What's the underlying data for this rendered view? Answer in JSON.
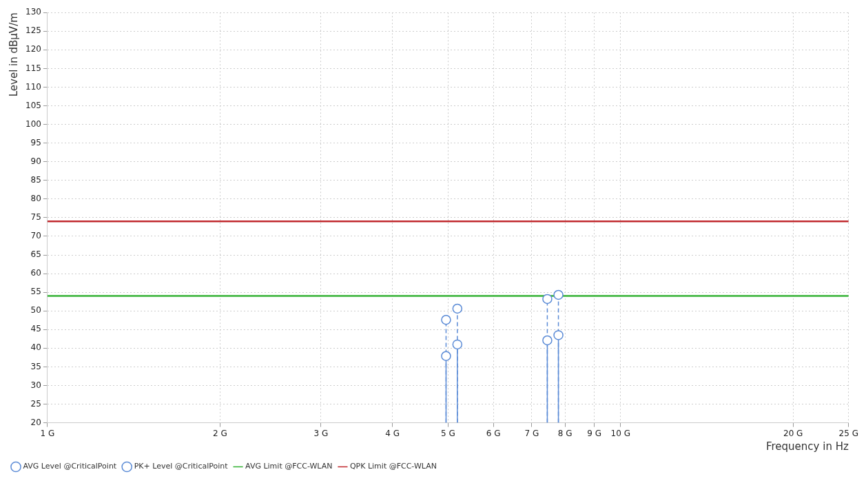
{
  "chart_data": {
    "type": "lollipop",
    "xlabel": "Frequency in Hz",
    "ylabel": "Level in dBµV/m",
    "log": "x",
    "grid": true,
    "legend": "bottom left",
    "marker": "circle",
    "xlim": [
      1,
      25
    ],
    "ylim": [
      20,
      130
    ],
    "xticks": [
      {
        "value": 1,
        "label": "1 G"
      },
      {
        "value": 2,
        "label": "2 G"
      },
      {
        "value": 3,
        "label": "3 G"
      },
      {
        "value": 4,
        "label": "4 G"
      },
      {
        "value": 5,
        "label": "5 G"
      },
      {
        "value": 6,
        "label": "6 G"
      },
      {
        "value": 7,
        "label": "7 G"
      },
      {
        "value": 8,
        "label": "8 G"
      },
      {
        "value": 9,
        "label": "9 G"
      },
      {
        "value": 10,
        "label": "10 G"
      },
      {
        "value": 20,
        "label": "20 G"
      },
      {
        "value": 25,
        "label": "25 G"
      }
    ],
    "yticks": [
      20,
      25,
      30,
      35,
      40,
      45,
      50,
      55,
      60,
      65,
      70,
      75,
      80,
      85,
      90,
      95,
      100,
      105,
      110,
      115,
      120,
      125,
      130
    ],
    "series": [
      {
        "name": "AVG Level @CriticalPoint",
        "line_style": "solid",
        "color": "#5b8bd6",
        "x": [
          4.96,
          5.19,
          7.45,
          7.79
        ],
        "values": [
          37.9,
          41.0,
          42.1,
          43.5
        ]
      },
      {
        "name": "PK+ Level @CriticalPoint",
        "line_style": "dashed",
        "color": "#5b8bd6",
        "x": [
          4.96,
          5.19,
          7.45,
          7.79
        ],
        "values": [
          47.6,
          50.6,
          53.2,
          54.3
        ]
      },
      {
        "name": "AVG Limit @FCC-WLAN",
        "type": "line",
        "marker": "none",
        "color": "#33b233",
        "x": [
          1,
          25
        ],
        "values": [
          54,
          54
        ]
      },
      {
        "name": "QPK Limit @FCC-WLAN",
        "type": "line",
        "marker": "none",
        "color": "#c0282d",
        "x": [
          1,
          25
        ],
        "values": [
          74,
          74
        ]
      }
    ]
  }
}
